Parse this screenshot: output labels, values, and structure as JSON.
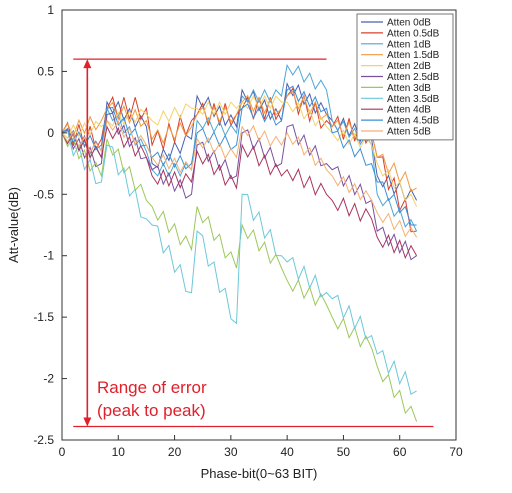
{
  "chart_data": {
    "type": "line",
    "xlabel": "Phase-bit(0~63 BIT)",
    "ylabel": "Att-value(dB)",
    "xlim": [
      0,
      70
    ],
    "ylim": [
      -2.5,
      1
    ],
    "xticks": [
      "0",
      "10",
      "20",
      "30",
      "40",
      "50",
      "60",
      "70"
    ],
    "yticks": [
      "1",
      "0.5",
      "0",
      "-0.5",
      "-1",
      "-1.5",
      "-2",
      "-2.5"
    ],
    "grid": false,
    "legend_position": "top-right",
    "series": [
      {
        "name": "Atten 0dB",
        "color": "#4b5fb0",
        "wobble": 0.06,
        "points": [
          [
            0,
            0
          ],
          [
            7,
            -0.15
          ],
          [
            8,
            0.25
          ],
          [
            15,
            0.05
          ],
          [
            16,
            -0.25
          ],
          [
            23,
            -0.05
          ],
          [
            24,
            0.3
          ],
          [
            31,
            0.05
          ],
          [
            32,
            0.35
          ],
          [
            39,
            0.1
          ],
          [
            40,
            0.4
          ],
          [
            47,
            0.15
          ],
          [
            48,
            0.1
          ],
          [
            55,
            -0.05
          ],
          [
            56,
            -0.35
          ],
          [
            63,
            -0.55
          ]
        ]
      },
      {
        "name": "Atten 0.5dB",
        "color": "#d6402e",
        "wobble": 0.09,
        "points": [
          [
            0,
            0
          ],
          [
            7,
            -0.05
          ],
          [
            8,
            0.2
          ],
          [
            15,
            0.2
          ],
          [
            16,
            -0.1
          ],
          [
            23,
            0.1
          ],
          [
            24,
            0.15
          ],
          [
            31,
            0.15
          ],
          [
            32,
            0.2
          ],
          [
            39,
            0.2
          ],
          [
            40,
            0.3
          ],
          [
            47,
            0.1
          ],
          [
            48,
            0.05
          ],
          [
            55,
            0.0
          ],
          [
            56,
            -0.2
          ],
          [
            63,
            -0.8
          ]
        ]
      },
      {
        "name": "Atten 1dB",
        "color": "#4da6d6",
        "wobble": 0.05,
        "points": [
          [
            0,
            0
          ],
          [
            7,
            -0.2
          ],
          [
            8,
            0.2
          ],
          [
            15,
            -0.15
          ],
          [
            16,
            -0.3
          ],
          [
            23,
            -0.3
          ],
          [
            24,
            0.1
          ],
          [
            31,
            0.0
          ],
          [
            32,
            0.3
          ],
          [
            39,
            0.3
          ],
          [
            40,
            0.55
          ],
          [
            47,
            0.35
          ],
          [
            48,
            0.1
          ],
          [
            55,
            -0.1
          ],
          [
            56,
            -0.5
          ],
          [
            63,
            -0.8
          ]
        ]
      },
      {
        "name": "Atten 1.5dB",
        "color": "#f09a40",
        "wobble": 0.06,
        "points": [
          [
            0,
            0
          ],
          [
            7,
            0.1
          ],
          [
            8,
            0.2
          ],
          [
            15,
            0.1
          ],
          [
            16,
            -0.05
          ],
          [
            23,
            0.05
          ],
          [
            24,
            0.15
          ],
          [
            31,
            0.15
          ],
          [
            32,
            0.25
          ],
          [
            39,
            0.2
          ],
          [
            40,
            0.3
          ],
          [
            47,
            0.15
          ],
          [
            48,
            0.05
          ],
          [
            55,
            0.0
          ],
          [
            56,
            -0.2
          ],
          [
            63,
            -0.45
          ]
        ]
      },
      {
        "name": "Atten 2dB",
        "color": "#f5d26a",
        "wobble": 0.05,
        "points": [
          [
            0,
            0
          ],
          [
            7,
            0.05
          ],
          [
            8,
            0.1
          ],
          [
            15,
            0.15
          ],
          [
            16,
            0.1
          ],
          [
            23,
            0.2
          ],
          [
            24,
            0.2
          ],
          [
            31,
            0.2
          ],
          [
            32,
            0.25
          ],
          [
            39,
            0.25
          ],
          [
            40,
            0.25
          ],
          [
            47,
            0.05
          ],
          [
            48,
            0.0
          ],
          [
            55,
            -0.1
          ],
          [
            56,
            -0.25
          ],
          [
            63,
            -0.6
          ]
        ]
      },
      {
        "name": "Atten 2.5dB",
        "color": "#7a4fa0",
        "wobble": 0.06,
        "points": [
          [
            0,
            0
          ],
          [
            7,
            -0.25
          ],
          [
            8,
            0.15
          ],
          [
            15,
            -0.2
          ],
          [
            16,
            -0.3
          ],
          [
            23,
            -0.5
          ],
          [
            24,
            -0.1
          ],
          [
            31,
            -0.35
          ],
          [
            32,
            0.0
          ],
          [
            39,
            -0.25
          ],
          [
            40,
            0.05
          ],
          [
            47,
            -0.25
          ],
          [
            48,
            -0.3
          ],
          [
            55,
            -0.55
          ],
          [
            56,
            -0.8
          ],
          [
            63,
            -1.0
          ]
        ]
      },
      {
        "name": "Atten 3dB",
        "color": "#9cc85a",
        "wobble": 0.06,
        "points": [
          [
            0,
            0
          ],
          [
            7,
            -0.35
          ],
          [
            8,
            -0.05
          ],
          [
            15,
            -0.55
          ],
          [
            16,
            -0.6
          ],
          [
            23,
            -0.95
          ],
          [
            24,
            -0.6
          ],
          [
            31,
            -1.1
          ],
          [
            32,
            -0.75
          ],
          [
            39,
            -1.1
          ],
          [
            40,
            -1.2
          ],
          [
            47,
            -1.4
          ],
          [
            48,
            -1.5
          ],
          [
            55,
            -1.75
          ],
          [
            56,
            -1.9
          ],
          [
            63,
            -2.35
          ]
        ]
      },
      {
        "name": "Atten 3.5dB",
        "color": "#6cc8d8",
        "wobble": 0.07,
        "points": [
          [
            0,
            0
          ],
          [
            7,
            -0.4
          ],
          [
            8,
            -0.1
          ],
          [
            15,
            -0.7
          ],
          [
            16,
            -0.75
          ],
          [
            23,
            -1.3
          ],
          [
            24,
            -0.8
          ],
          [
            31,
            -1.55
          ],
          [
            32,
            -0.5
          ],
          [
            39,
            -1.0
          ],
          [
            40,
            -1.05
          ],
          [
            47,
            -1.3
          ],
          [
            48,
            -1.35
          ],
          [
            55,
            -1.65
          ],
          [
            56,
            -1.8
          ],
          [
            63,
            -2.1
          ]
        ]
      },
      {
        "name": "Atten 4dB",
        "color": "#a8345e",
        "wobble": 0.06,
        "points": [
          [
            0,
            0
          ],
          [
            7,
            -0.2
          ],
          [
            8,
            0.05
          ],
          [
            15,
            -0.2
          ],
          [
            16,
            -0.35
          ],
          [
            23,
            -0.4
          ],
          [
            24,
            -0.15
          ],
          [
            31,
            -0.45
          ],
          [
            32,
            -0.1
          ],
          [
            39,
            -0.35
          ],
          [
            40,
            -0.3
          ],
          [
            47,
            -0.5
          ],
          [
            48,
            -0.55
          ],
          [
            55,
            -0.7
          ],
          [
            56,
            -0.85
          ],
          [
            63,
            -1.0
          ]
        ]
      },
      {
        "name": "Atten 4.5dB",
        "color": "#3a8fd6",
        "wobble": 0.05,
        "points": [
          [
            0,
            0
          ],
          [
            7,
            -0.1
          ],
          [
            8,
            0.2
          ],
          [
            15,
            -0.1
          ],
          [
            16,
            -0.2
          ],
          [
            23,
            -0.25
          ],
          [
            24,
            0.0
          ],
          [
            31,
            -0.1
          ],
          [
            32,
            0.2
          ],
          [
            39,
            0.1
          ],
          [
            40,
            0.35
          ],
          [
            47,
            0.2
          ],
          [
            48,
            0.0
          ],
          [
            55,
            -0.25
          ],
          [
            56,
            -0.4
          ],
          [
            63,
            -0.75
          ]
        ]
      },
      {
        "name": "Atten 5dB",
        "color": "#f5b070",
        "wobble": 0.05,
        "points": [
          [
            0,
            0
          ],
          [
            7,
            -0.15
          ],
          [
            8,
            0.1
          ],
          [
            15,
            -0.1
          ],
          [
            16,
            -0.2
          ],
          [
            23,
            -0.3
          ],
          [
            24,
            -0.05
          ],
          [
            31,
            -0.2
          ],
          [
            32,
            0.05
          ],
          [
            39,
            -0.1
          ],
          [
            40,
            0.0
          ],
          [
            47,
            -0.3
          ],
          [
            48,
            -0.35
          ],
          [
            55,
            -0.55
          ],
          [
            56,
            -0.65
          ],
          [
            63,
            -0.85
          ]
        ]
      }
    ],
    "annotations": {
      "ref_high": 0.6,
      "ref_low": -2.39,
      "ref_high_x": [
        2,
        47
      ],
      "ref_low_x": [
        2,
        66
      ],
      "arrow_x": 4.5,
      "color": "#e0202a",
      "text_line1": "Range of error",
      "text_line2": "(peak to peak)"
    }
  }
}
